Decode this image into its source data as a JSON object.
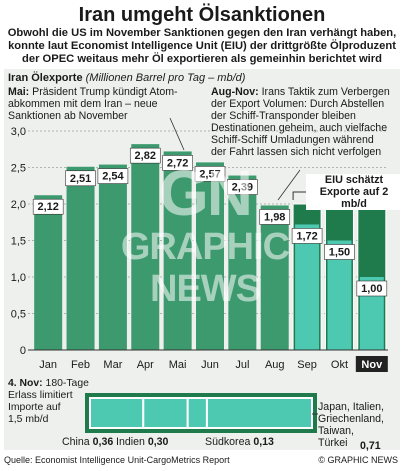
{
  "header": {
    "title": "Iran umgeht Ölsanktionen",
    "intro": "Obwohl die US im November Sanktionen gegen den Iran verhängt haben,\nkonnte laut Economist Intelligence Unit (EIU) der drittgrößte Ölproduzent\nder OPEC weitaus mehr Öl exportieren als gemeinhin berichtet wird"
  },
  "annotations": {
    "unit_bold": "Iran Ölexporte",
    "unit_italic": "(Millionen Barrel pro Tag – mb/d)",
    "may_bold": "Mai:",
    "may_text": " Präsident Trump kündigt Atom-\nabkommen mit dem Iran – neue\nSanktionen ab November",
    "augnov_bold": "Aug-Nov:",
    "augnov_text": " Irans Taktik zum Verbergen\nder Export Volumen: Durch Abstellen\nder Schiff-Transponder bleiben\nDestinationen geheim, auch vielfache\nSchiff-Schiff Umladungen während\nder Fahrt lassen sich nicht verfolgen",
    "eiu_callout": "EIU schätzt\nExporte auf 2 mb/d"
  },
  "chart_data": [
    {
      "type": "bar",
      "categories": [
        "Jan",
        "Feb",
        "Mar",
        "Apr",
        "Mai",
        "Jun",
        "Jul",
        "Aug",
        "Sep",
        "Okt",
        "Nov"
      ],
      "values": [
        2.12,
        2.51,
        2.54,
        2.82,
        2.72,
        2.57,
        2.39,
        1.98,
        1.72,
        1.5,
        1.0
      ],
      "value_labels": [
        "2,12",
        "2,51",
        "2,54",
        "2,82",
        "2,72",
        "2,57",
        "2,39",
        "1,98",
        "1,72",
        "1,50",
        "1,00"
      ],
      "estimate": {
        "from_category": "Sep",
        "value": 2.0
      },
      "ytick_labels": [
        "0",
        "0,5",
        "1,0",
        "1,5",
        "2,0",
        "2,5",
        "3,0"
      ],
      "ylim": [
        0,
        3.0
      ],
      "grid": true,
      "highlighted_category": "Nov"
    },
    {
      "type": "bar",
      "orientation": "horizontal-stacked",
      "categories": [
        "China",
        "Indien",
        "Südkorea",
        "Japan, Italien, Griechenland, Taiwan, Türkei"
      ],
      "values": [
        0.36,
        0.3,
        0.13,
        0.71
      ],
      "value_labels": [
        "0,36",
        "0,30",
        "0,13",
        "0,71"
      ],
      "total": 1.5
    }
  ],
  "bottom": {
    "note_bold": "4. Nov:",
    "note_text": " 180-Tage\nErlass limitiert\nImporte auf\n1,5 mb/d",
    "right_label": "Japan, Italien,\nGriechenland,\nTaiwan,\nTürkei"
  },
  "footer": {
    "source": "Quelle: Economist Intelligence Unit-CargoMetrics Report",
    "copyright": "© GRAPHIC NEWS"
  },
  "watermark": {
    "logo": "GN",
    "text": "GRAPHIC NEWS"
  },
  "colors": {
    "bar": "#3c9a6e",
    "bar_dark": "#1f7a4c",
    "estimate_fill": "#1f7a4c",
    "teal": "#4cc9b0",
    "panel": "#eef0ee",
    "nov_label_bg": "#222222"
  }
}
